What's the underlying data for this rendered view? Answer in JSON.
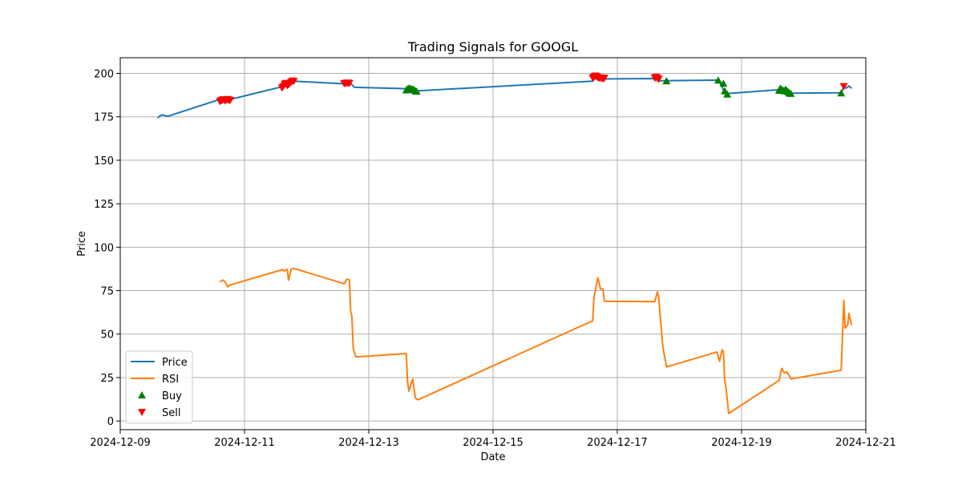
{
  "chart_data": {
    "type": "line",
    "title": "Trading Signals for GOOGL",
    "xlabel": "Date",
    "ylabel": "Price",
    "xlim": [
      "2024-12-09 00:00",
      "2024-12-21 00:00"
    ],
    "ylim": [
      -5,
      209
    ],
    "grid": true,
    "legend_position": "lower-left",
    "x_ticks": [
      "2024-12-09",
      "2024-12-11",
      "2024-12-13",
      "2024-12-15",
      "2024-12-17",
      "2024-12-19",
      "2024-12-21"
    ],
    "y_ticks": [
      0,
      25,
      50,
      75,
      100,
      125,
      150,
      175,
      200
    ],
    "series": [
      {
        "name": "Price",
        "color": "#1f77b4",
        "points": [
          [
            "2024-12-09 14:30",
            174.3
          ],
          [
            "2024-12-09 15:30",
            175.8
          ],
          [
            "2024-12-09 16:30",
            176.1
          ],
          [
            "2024-12-09 17:30",
            175.5
          ],
          [
            "2024-12-09 18:30",
            175.4
          ],
          [
            "2024-12-09 19:30",
            175.9
          ],
          [
            "2024-12-10 14:30",
            185.0
          ],
          [
            "2024-12-10 15:00",
            182.6
          ],
          [
            "2024-12-10 15:30",
            184.3
          ],
          [
            "2024-12-10 16:30",
            184.8
          ],
          [
            "2024-12-10 17:30",
            185.2
          ],
          [
            "2024-12-10 18:30",
            185.0
          ],
          [
            "2024-12-11 14:30",
            192.3
          ],
          [
            "2024-12-11 15:30",
            193.4
          ],
          [
            "2024-12-11 16:30",
            193.0
          ],
          [
            "2024-12-11 17:30",
            194.2
          ],
          [
            "2024-12-11 19:00",
            195.5
          ],
          [
            "2024-12-12 14:30",
            194.0
          ],
          [
            "2024-12-12 15:30",
            194.6
          ],
          [
            "2024-12-12 16:30",
            194.7
          ],
          [
            "2024-12-12 17:30",
            193.5
          ],
          [
            "2024-12-12 18:30",
            192.0
          ],
          [
            "2024-12-13 14:30",
            191.2
          ],
          [
            "2024-12-13 15:30",
            191.4
          ],
          [
            "2024-12-13 16:30",
            191.0
          ],
          [
            "2024-12-13 17:30",
            190.6
          ],
          [
            "2024-12-13 18:30",
            189.9
          ],
          [
            "2024-12-16 14:30",
            195.5
          ],
          [
            "2024-12-16 15:30",
            197.2
          ],
          [
            "2024-12-16 16:30",
            197.7
          ],
          [
            "2024-12-16 17:30",
            197.2
          ],
          [
            "2024-12-16 18:30",
            196.8
          ],
          [
            "2024-12-17 14:30",
            197.0
          ],
          [
            "2024-12-17 15:30",
            196.7
          ],
          [
            "2024-12-17 16:30",
            195.7
          ],
          [
            "2024-12-17 17:00",
            195.7
          ],
          [
            "2024-12-18 14:30",
            196.1
          ],
          [
            "2024-12-18 15:30",
            194.8
          ],
          [
            "2024-12-18 16:30",
            192.2
          ],
          [
            "2024-12-18 17:30",
            188.5
          ],
          [
            "2024-12-18 18:30",
            188.4
          ],
          [
            "2024-12-19 14:30",
            190.6
          ],
          [
            "2024-12-19 15:30",
            190.4
          ],
          [
            "2024-12-19 16:30",
            189.5
          ],
          [
            "2024-12-19 17:30",
            189.8
          ],
          [
            "2024-12-19 18:30",
            188.6
          ],
          [
            "2024-12-20 14:30",
            188.8
          ],
          [
            "2024-12-20 15:30",
            192.0
          ],
          [
            "2024-12-20 16:30",
            191.5
          ],
          [
            "2024-12-20 17:30",
            192.7
          ],
          [
            "2024-12-20 18:30",
            191.4
          ]
        ]
      },
      {
        "name": "RSI",
        "color": "#ff7f0e",
        "points": [
          [
            "2024-12-10 14:30",
            80.0
          ],
          [
            "2024-12-10 15:30",
            81.1
          ],
          [
            "2024-12-10 16:30",
            80.1
          ],
          [
            "2024-12-10 17:30",
            77.2
          ],
          [
            "2024-12-10 18:30",
            78.3
          ],
          [
            "2024-12-11 14:30",
            87.0
          ],
          [
            "2024-12-11 15:30",
            86.3
          ],
          [
            "2024-12-11 16:30",
            87.3
          ],
          [
            "2024-12-11 17:00",
            81.0
          ],
          [
            "2024-12-11 18:00",
            87.4
          ],
          [
            "2024-12-11 19:00",
            87.8
          ],
          [
            "2024-12-12 14:30",
            79.0
          ],
          [
            "2024-12-12 15:30",
            81.6
          ],
          [
            "2024-12-12 16:30",
            81.2
          ],
          [
            "2024-12-12 17:00",
            63.5
          ],
          [
            "2024-12-12 17:30",
            59.9
          ],
          [
            "2024-12-12 18:00",
            41.6
          ],
          [
            "2024-12-12 19:00",
            36.9
          ],
          [
            "2024-12-13 14:30",
            38.8
          ],
          [
            "2024-12-13 15:00",
            22.2
          ],
          [
            "2024-12-13 15:30",
            17.2
          ],
          [
            "2024-12-13 16:30",
            22.3
          ],
          [
            "2024-12-13 17:00",
            24.0
          ],
          [
            "2024-12-13 18:00",
            13.3
          ],
          [
            "2024-12-13 19:00",
            12.2
          ],
          [
            "2024-12-16 14:30",
            57.7
          ],
          [
            "2024-12-16 15:00",
            71.4
          ],
          [
            "2024-12-16 15:30",
            75.1
          ],
          [
            "2024-12-16 16:30",
            82.4
          ],
          [
            "2024-12-16 17:30",
            76.0
          ],
          [
            "2024-12-16 18:30",
            75.9
          ],
          [
            "2024-12-16 19:00",
            68.9
          ],
          [
            "2024-12-17 14:30",
            68.7
          ],
          [
            "2024-12-17 15:30",
            74.3
          ],
          [
            "2024-12-17 16:00",
            70.9
          ],
          [
            "2024-12-17 17:30",
            44.2
          ],
          [
            "2024-12-17 18:00",
            39.5
          ],
          [
            "2024-12-17 19:00",
            31.1
          ],
          [
            "2024-12-18 14:30",
            39.7
          ],
          [
            "2024-12-18 15:30",
            34.4
          ],
          [
            "2024-12-18 16:30",
            41.0
          ],
          [
            "2024-12-18 17:00",
            39.8
          ],
          [
            "2024-12-18 17:30",
            23.5
          ],
          [
            "2024-12-18 18:00",
            19.2
          ],
          [
            "2024-12-18 19:00",
            4.3
          ],
          [
            "2024-12-19 14:30",
            23.3
          ],
          [
            "2024-12-19 15:30",
            30.3
          ],
          [
            "2024-12-19 16:30",
            27.7
          ],
          [
            "2024-12-19 17:30",
            28.2
          ],
          [
            "2024-12-19 18:30",
            26.2
          ],
          [
            "2024-12-19 19:00",
            24.2
          ],
          [
            "2024-12-20 14:30",
            29.2
          ],
          [
            "2024-12-20 15:30",
            69.5
          ],
          [
            "2024-12-20 16:00",
            53.5
          ],
          [
            "2024-12-20 17:00",
            55.2
          ],
          [
            "2024-12-20 17:30",
            61.9
          ],
          [
            "2024-12-20 18:30",
            55.1
          ]
        ]
      }
    ],
    "signals": [
      {
        "name": "Buy",
        "marker": "triangle-up",
        "color": "#008000",
        "points": [
          [
            "2024-12-13 14:30",
            190.3
          ],
          [
            "2024-12-13 15:00",
            191.0
          ],
          [
            "2024-12-13 15:30",
            191.4
          ],
          [
            "2024-12-13 16:00",
            191.2
          ],
          [
            "2024-12-13 16:30",
            190.9
          ],
          [
            "2024-12-13 17:00",
            190.8
          ],
          [
            "2024-12-13 17:30",
            190.5
          ],
          [
            "2024-12-13 18:00",
            189.8
          ],
          [
            "2024-12-13 18:30",
            189.6
          ],
          [
            "2024-12-17 19:00",
            195.6
          ],
          [
            "2024-12-18 15:00",
            196.0
          ],
          [
            "2024-12-18 17:00",
            194.1
          ],
          [
            "2024-12-18 17:30",
            189.8
          ],
          [
            "2024-12-18 18:30",
            187.9
          ],
          [
            "2024-12-19 14:30",
            190.1
          ],
          [
            "2024-12-19 15:00",
            191.4
          ],
          [
            "2024-12-19 15:30",
            190.5
          ],
          [
            "2024-12-19 16:00",
            190.2
          ],
          [
            "2024-12-19 16:30",
            189.8
          ],
          [
            "2024-12-19 17:00",
            190.7
          ],
          [
            "2024-12-19 17:30",
            189.9
          ],
          [
            "2024-12-19 18:00",
            189.3
          ],
          [
            "2024-12-19 18:30",
            188.6
          ],
          [
            "2024-12-19 19:00",
            188.3
          ],
          [
            "2024-12-20 14:30",
            188.6
          ]
        ]
      },
      {
        "name": "Sell",
        "marker": "triangle-down",
        "color": "#ff0000",
        "points": [
          [
            "2024-12-10 14:30",
            184.0
          ],
          [
            "2024-12-10 15:00",
            184.4
          ],
          [
            "2024-12-10 15:30",
            184.8
          ],
          [
            "2024-12-10 16:00",
            185.0
          ],
          [
            "2024-12-10 16:30",
            184.3
          ],
          [
            "2024-12-10 17:00",
            184.9
          ],
          [
            "2024-12-10 17:30",
            185.1
          ],
          [
            "2024-12-10 18:00",
            184.6
          ],
          [
            "2024-12-10 18:30",
            184.7
          ],
          [
            "2024-12-11 14:30",
            191.7
          ],
          [
            "2024-12-11 15:00",
            192.6
          ],
          [
            "2024-12-11 15:30",
            193.9
          ],
          [
            "2024-12-11 16:00",
            194.4
          ],
          [
            "2024-12-11 16:30",
            193.1
          ],
          [
            "2024-12-11 17:00",
            193.6
          ],
          [
            "2024-12-11 17:30",
            194.4
          ],
          [
            "2024-12-11 18:00",
            195.0
          ],
          [
            "2024-12-11 18:30",
            195.7
          ],
          [
            "2024-12-11 19:00",
            195.5
          ],
          [
            "2024-12-12 14:30",
            194.2
          ],
          [
            "2024-12-12 15:00",
            194.4
          ],
          [
            "2024-12-12 15:30",
            194.6
          ],
          [
            "2024-12-12 16:00",
            194.5
          ],
          [
            "2024-12-12 16:30",
            194.4
          ],
          [
            "2024-12-16 14:30",
            197.5
          ],
          [
            "2024-12-16 15:00",
            198.0
          ],
          [
            "2024-12-16 15:30",
            198.6
          ],
          [
            "2024-12-16 16:00",
            198.3
          ],
          [
            "2024-12-16 16:30",
            197.7
          ],
          [
            "2024-12-16 17:00",
            197.3
          ],
          [
            "2024-12-16 17:30",
            197.6
          ],
          [
            "2024-12-16 18:00",
            197.2
          ],
          [
            "2024-12-16 18:30",
            197.0
          ],
          [
            "2024-12-16 19:00",
            197.4
          ],
          [
            "2024-12-17 14:30",
            197.4
          ],
          [
            "2024-12-17 15:00",
            197.9
          ],
          [
            "2024-12-17 15:30",
            197.3
          ],
          [
            "2024-12-17 16:00",
            196.8
          ],
          [
            "2024-12-20 15:30",
            192.6
          ]
        ]
      }
    ]
  }
}
